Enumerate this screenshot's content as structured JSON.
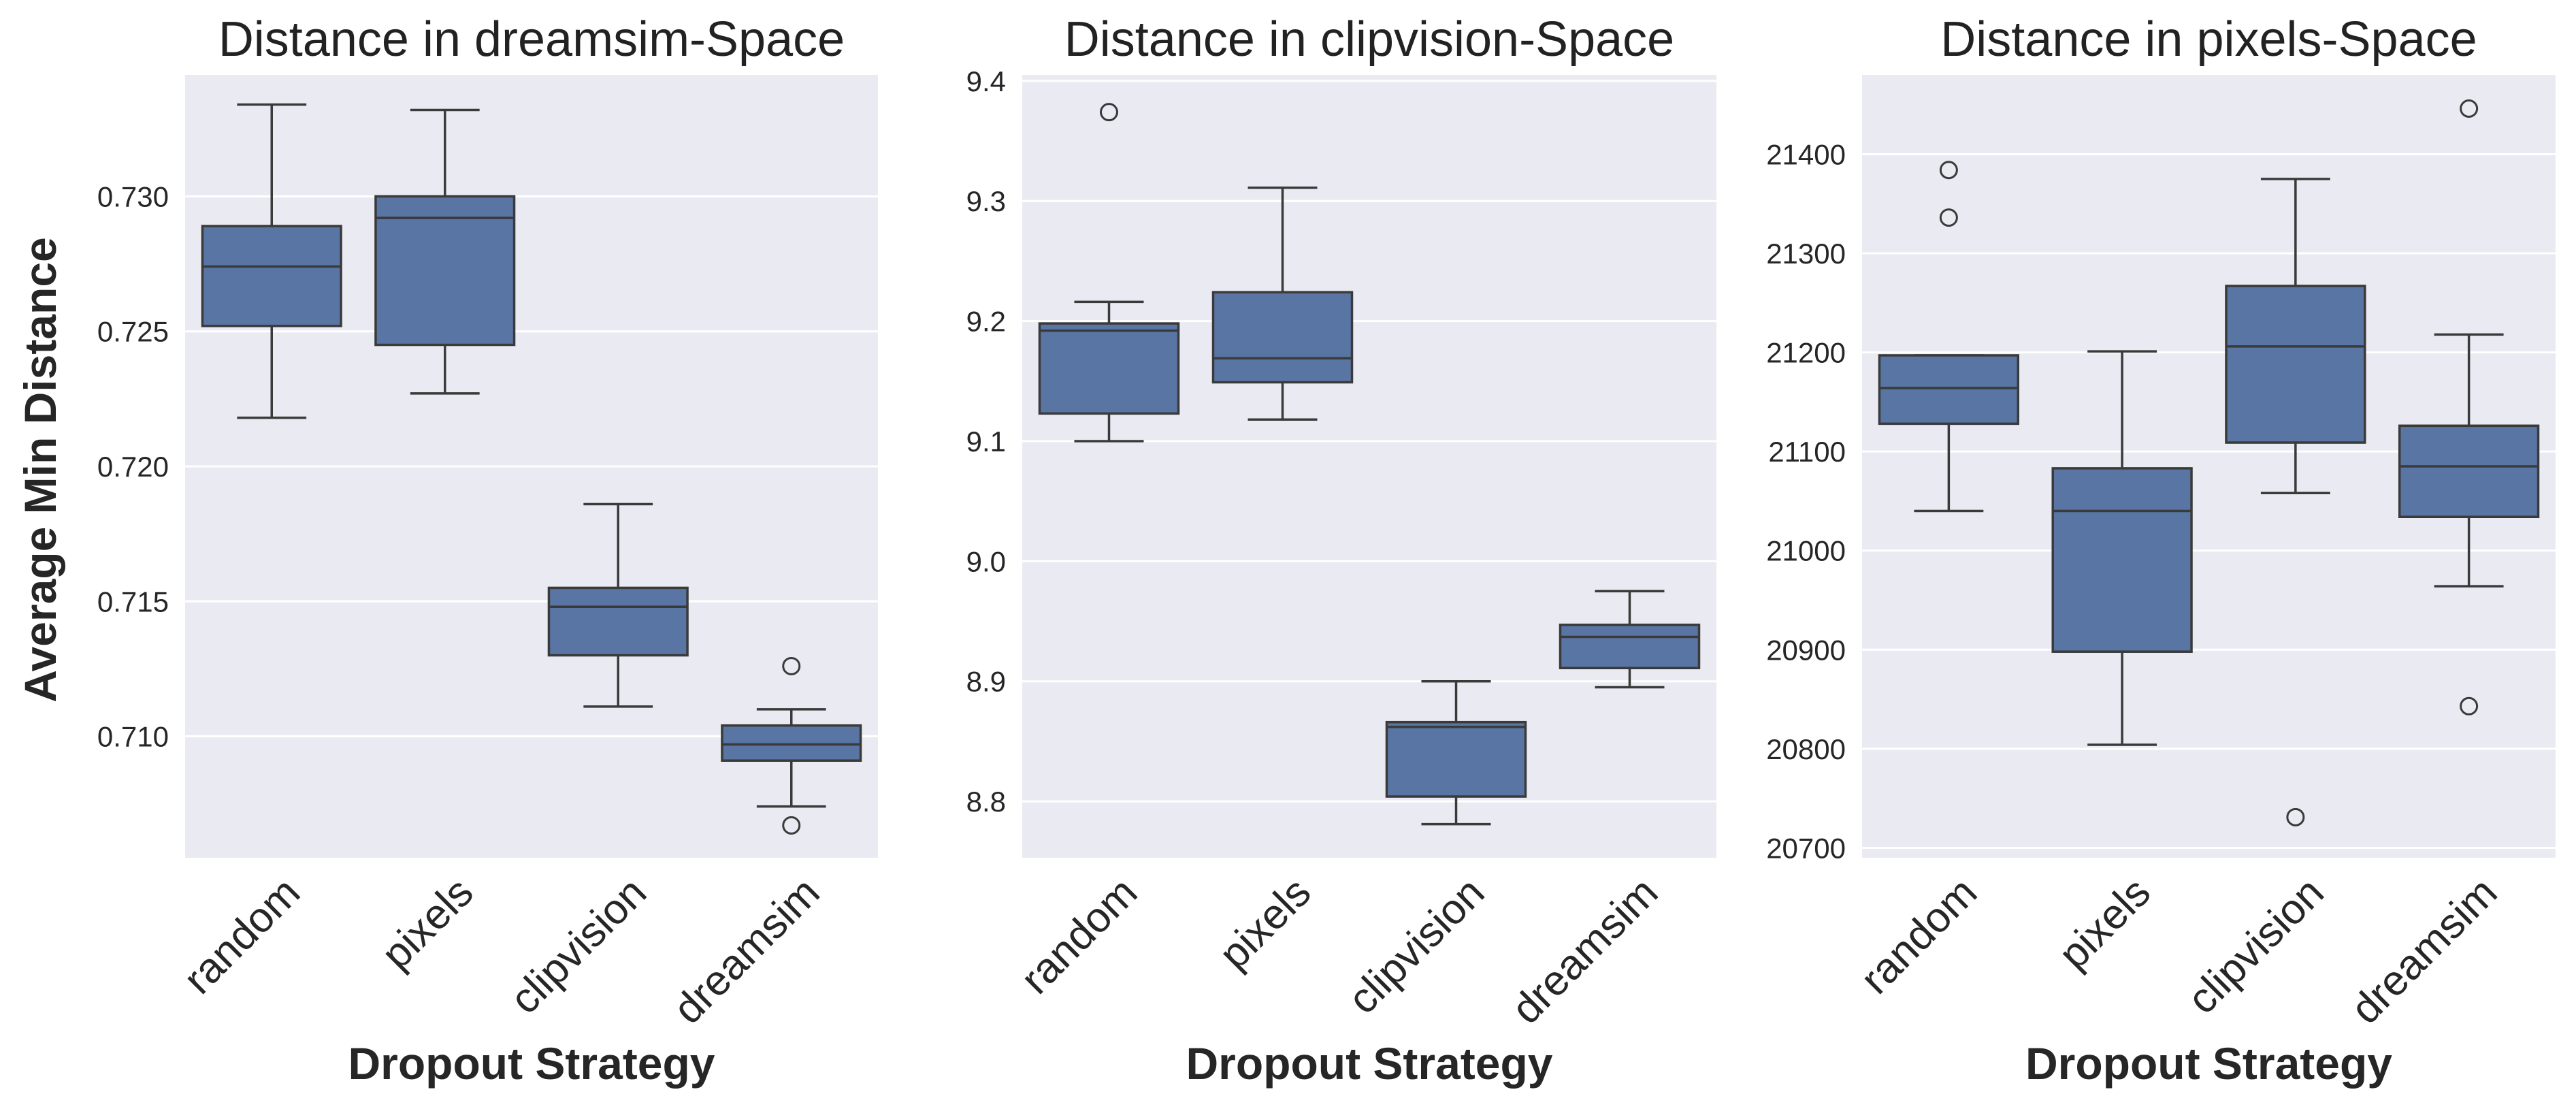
{
  "figure": {
    "ylabel": "Average Min Distance",
    "xlabel": "Dropout Strategy",
    "box_color": "#5875a4",
    "line_color": "#3a3a3a",
    "plot_bg": "#eaeaf2",
    "grid_color": "#ffffff"
  },
  "chart_data": [
    {
      "type": "box",
      "title": "Distance in dreamsim-Space",
      "xlabel": "Dropout Strategy",
      "ylabel": "Average Min Distance",
      "categories": [
        "random",
        "pixels",
        "clipvision",
        "dreamsim"
      ],
      "ylim": [
        0.7055,
        0.7345
      ],
      "yticks": [
        0.71,
        0.715,
        0.72,
        0.725,
        0.73
      ],
      "ytick_labels": [
        "0.710",
        "0.715",
        "0.720",
        "0.725",
        "0.730"
      ],
      "grid": true,
      "boxes": [
        {
          "category": "random",
          "whislo": 0.7218,
          "q1": 0.7252,
          "med": 0.7274,
          "q3": 0.7289,
          "whishi": 0.7334,
          "fliers": []
        },
        {
          "category": "pixels",
          "whislo": 0.7227,
          "q1": 0.7245,
          "med": 0.7292,
          "q3": 0.73,
          "whishi": 0.7332,
          "fliers": []
        },
        {
          "category": "clipvision",
          "whislo": 0.7111,
          "q1": 0.713,
          "med": 0.7148,
          "q3": 0.7155,
          "whishi": 0.7186,
          "fliers": []
        },
        {
          "category": "dreamsim",
          "whislo": 0.7074,
          "q1": 0.7091,
          "med": 0.7097,
          "q3": 0.7104,
          "whishi": 0.711,
          "fliers": [
            0.7126,
            0.7067
          ]
        }
      ]
    },
    {
      "type": "box",
      "title": "Distance in clipvision-Space",
      "xlabel": "Dropout Strategy",
      "ylabel": "",
      "categories": [
        "random",
        "pixels",
        "clipvision",
        "dreamsim"
      ],
      "ylim": [
        8.753,
        9.405
      ],
      "yticks": [
        8.8,
        8.9,
        9.0,
        9.1,
        9.2,
        9.3,
        9.4
      ],
      "ytick_labels": [
        "8.8",
        "8.9",
        "9.0",
        "9.1",
        "9.2",
        "9.3",
        "9.4"
      ],
      "grid": true,
      "boxes": [
        {
          "category": "random",
          "whislo": 9.1,
          "q1": 9.123,
          "med": 9.192,
          "q3": 9.198,
          "whishi": 9.216,
          "fliers": [
            9.374
          ]
        },
        {
          "category": "pixels",
          "whislo": 9.118,
          "q1": 9.149,
          "med": 9.169,
          "q3": 9.224,
          "whishi": 9.311,
          "fliers": []
        },
        {
          "category": "clipvision",
          "whislo": 8.781,
          "q1": 8.804,
          "med": 8.862,
          "q3": 8.866,
          "whishi": 8.9,
          "fliers": []
        },
        {
          "category": "dreamsim",
          "whislo": 8.895,
          "q1": 8.911,
          "med": 8.937,
          "q3": 8.947,
          "whishi": 8.975,
          "fliers": []
        }
      ]
    },
    {
      "type": "box",
      "title": "Distance in pixels-Space",
      "xlabel": "Dropout Strategy",
      "ylabel": "",
      "categories": [
        "random",
        "pixels",
        "clipvision",
        "dreamsim"
      ],
      "ylim": [
        20690,
        21480
      ],
      "yticks": [
        20700,
        20800,
        20900,
        21000,
        21100,
        21200,
        21300,
        21400
      ],
      "ytick_labels": [
        "20700",
        "20800",
        "20900",
        "21000",
        "21100",
        "21200",
        "21300",
        "21400"
      ],
      "grid": true,
      "boxes": [
        {
          "category": "random",
          "whislo": 21040,
          "q1": 21128,
          "med": 21164,
          "q3": 21197,
          "whishi": 21197,
          "fliers": [
            21384,
            21336
          ]
        },
        {
          "category": "pixels",
          "whislo": 20804,
          "q1": 20898,
          "med": 21040,
          "q3": 21083,
          "whishi": 21201,
          "fliers": []
        },
        {
          "category": "clipvision",
          "whislo": 21058,
          "q1": 21109,
          "med": 21206,
          "q3": 21267,
          "whishi": 21375,
          "fliers": [
            20731
          ]
        },
        {
          "category": "dreamsim",
          "whislo": 20964,
          "q1": 21034,
          "med": 21085,
          "q3": 21126,
          "whishi": 21218,
          "fliers": [
            21446,
            20843
          ]
        }
      ]
    }
  ]
}
